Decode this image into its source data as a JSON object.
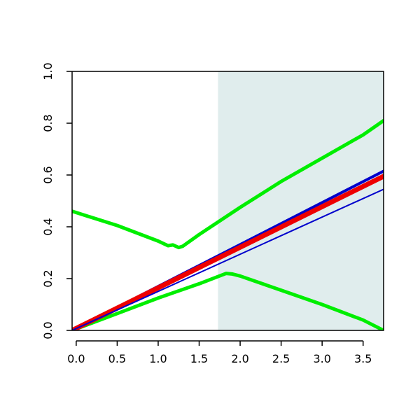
{
  "chart_data": {
    "type": "line",
    "title": "",
    "xlabel": "",
    "ylabel": "",
    "xlim": [
      -0.05,
      3.75
    ],
    "ylim": [
      0.0,
      1.0
    ],
    "x_ticks": [
      0.0,
      0.5,
      1.0,
      1.5,
      2.0,
      2.5,
      3.0,
      3.5
    ],
    "x_tick_labels": [
      "0.0",
      "0.5",
      "1.0",
      "1.5",
      "2.0",
      "2.5",
      "3.0",
      "3.5"
    ],
    "y_ticks": [
      0.0,
      0.2,
      0.4,
      0.6,
      0.8,
      1.0
    ],
    "y_tick_labels": [
      "0.0",
      "0.2",
      "0.4",
      "0.6",
      "0.8",
      "1.0"
    ],
    "grid": false,
    "legend": "none",
    "shaded_region": {
      "x_start": 1.73,
      "x_end": 3.75,
      "color": "#e0eded"
    },
    "series": [
      {
        "color": "#00ee00",
        "width": 5,
        "points": [
          [
            -0.05,
            0.46
          ],
          [
            0.5,
            0.405
          ],
          [
            1.0,
            0.345
          ],
          [
            1.12,
            0.327
          ],
          [
            1.18,
            0.33
          ],
          [
            1.25,
            0.32
          ],
          [
            1.3,
            0.325
          ],
          [
            1.5,
            0.37
          ],
          [
            2.0,
            0.475
          ],
          [
            2.5,
            0.575
          ],
          [
            3.0,
            0.665
          ],
          [
            3.5,
            0.755
          ],
          [
            3.75,
            0.81
          ]
        ]
      },
      {
        "color": "#00ee00",
        "width": 5,
        "points": [
          [
            -0.05,
            0.0
          ],
          [
            0.5,
            0.065
          ],
          [
            1.0,
            0.125
          ],
          [
            1.5,
            0.18
          ],
          [
            1.83,
            0.22
          ],
          [
            1.9,
            0.218
          ],
          [
            2.0,
            0.21
          ],
          [
            2.5,
            0.155
          ],
          [
            3.0,
            0.1
          ],
          [
            3.5,
            0.04
          ],
          [
            3.75,
            0.0
          ]
        ]
      },
      {
        "color": "#0000cc",
        "width": 4,
        "points": [
          [
            -0.05,
            0.0
          ],
          [
            3.75,
            0.615
          ]
        ]
      },
      {
        "color": "#ee0000",
        "width": 7,
        "points": [
          [
            -0.05,
            0.0
          ],
          [
            3.75,
            0.595
          ]
        ]
      },
      {
        "color": "#0000cc",
        "width": 2,
        "points": [
          [
            -0.05,
            0.0
          ],
          [
            3.75,
            0.545
          ]
        ]
      }
    ]
  }
}
